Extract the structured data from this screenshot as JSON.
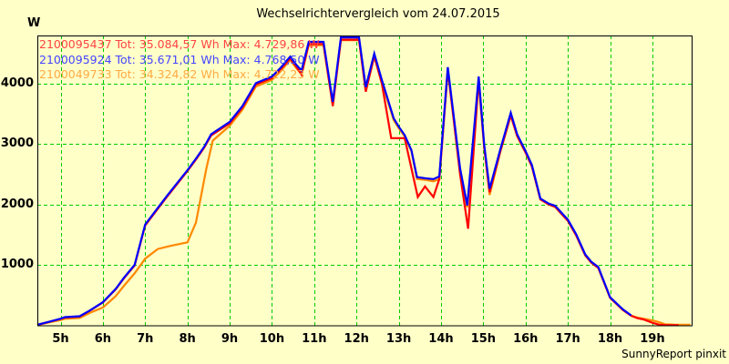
{
  "window": {
    "title": "Wechselrichtervergleich vom 24.07.2015",
    "y_unit_label": "W",
    "credit": "SunnyReport pinxit"
  },
  "colors": {
    "background": "#ffffc8",
    "frame": "#000000",
    "grid": "#00cc00",
    "series_red": "#ff0000",
    "series_blue": "#0000ff",
    "series_orange": "#ff8800",
    "legend_red": "#ff4444",
    "legend_blue": "#4444ff",
    "legend_orange": "#ffaa44"
  },
  "chart_data": {
    "type": "line",
    "title": "Wechselrichtervergleich vom 24.07.2015",
    "xlabel": "",
    "ylabel": "W",
    "x_unit": "hour of day",
    "y_unit": "W",
    "xlim": [
      4.45,
      19.95
    ],
    "ylim": [
      0,
      4800
    ],
    "grid": true,
    "grid_style": "dashed-green",
    "legend_position": "top-left-inside",
    "x_ticks": [
      {
        "t": 5,
        "label": "5h"
      },
      {
        "t": 6,
        "label": "6h"
      },
      {
        "t": 7,
        "label": "7h"
      },
      {
        "t": 8,
        "label": "8h"
      },
      {
        "t": 9,
        "label": "9h"
      },
      {
        "t": 10,
        "label": "10h"
      },
      {
        "t": 11,
        "label": "11h"
      },
      {
        "t": 12,
        "label": "12h"
      },
      {
        "t": 13,
        "label": "13h"
      },
      {
        "t": 14,
        "label": "14h"
      },
      {
        "t": 15,
        "label": "15h"
      },
      {
        "t": 16,
        "label": "16h"
      },
      {
        "t": 17,
        "label": "17h"
      },
      {
        "t": 18,
        "label": "18h"
      },
      {
        "t": 19,
        "label": "19h"
      }
    ],
    "y_ticks": [
      {
        "v": 1000,
        "label": "1000"
      },
      {
        "v": 2000,
        "label": "2000"
      },
      {
        "v": 3000,
        "label": "3000"
      },
      {
        "v": 4000,
        "label": "4000"
      }
    ],
    "series": [
      {
        "name": "2100095437",
        "legend": "2100095437 Tot: 35.084,57 Wh Max: 4.729,86 W",
        "total_wh": "35.084,57",
        "max_w": "4.729,86",
        "color": "#ff0000",
        "legend_color": "#ff4444",
        "z": 1,
        "points": [
          [
            4.45,
            8
          ],
          [
            4.7,
            52
          ],
          [
            5.0,
            105
          ],
          [
            5.1,
            130
          ],
          [
            5.45,
            145
          ],
          [
            5.7,
            245
          ],
          [
            6.0,
            378
          ],
          [
            6.3,
            592
          ],
          [
            6.5,
            780
          ],
          [
            6.75,
            988
          ],
          [
            7.0,
            1655
          ],
          [
            7.25,
            1885
          ],
          [
            7.5,
            2115
          ],
          [
            7.75,
            2335
          ],
          [
            8.0,
            2555
          ],
          [
            8.2,
            2745
          ],
          [
            8.4,
            2945
          ],
          [
            8.56,
            3145
          ],
          [
            9.0,
            3345
          ],
          [
            9.3,
            3605
          ],
          [
            9.62,
            3990
          ],
          [
            10.0,
            4095
          ],
          [
            10.2,
            4235
          ],
          [
            10.43,
            4420
          ],
          [
            10.58,
            4280
          ],
          [
            10.7,
            4150
          ],
          [
            10.87,
            4660
          ],
          [
            11.22,
            4660
          ],
          [
            11.44,
            3630
          ],
          [
            11.63,
            4730
          ],
          [
            12.06,
            4730
          ],
          [
            12.22,
            3870
          ],
          [
            12.42,
            4460
          ],
          [
            12.6,
            4000
          ],
          [
            12.82,
            3100
          ],
          [
            13.14,
            3100
          ],
          [
            13.45,
            2125
          ],
          [
            13.62,
            2300
          ],
          [
            13.82,
            2125
          ],
          [
            13.96,
            2420
          ],
          [
            14.16,
            4235
          ],
          [
            14.45,
            2500
          ],
          [
            14.64,
            1600
          ],
          [
            14.89,
            4065
          ],
          [
            15.02,
            2960
          ],
          [
            15.15,
            2205
          ],
          [
            15.4,
            2875
          ],
          [
            15.65,
            3475
          ],
          [
            15.8,
            3135
          ],
          [
            16.0,
            2860
          ],
          [
            16.15,
            2630
          ],
          [
            16.35,
            2085
          ],
          [
            16.55,
            2000
          ],
          [
            16.7,
            1960
          ],
          [
            17.0,
            1730
          ],
          [
            17.2,
            1485
          ],
          [
            17.41,
            1160
          ],
          [
            17.55,
            1040
          ],
          [
            17.72,
            950
          ],
          [
            18.0,
            455
          ],
          [
            18.15,
            355
          ],
          [
            18.3,
            255
          ],
          [
            18.5,
            158
          ],
          [
            18.65,
            118
          ],
          [
            18.8,
            95
          ],
          [
            19.0,
            42
          ],
          [
            19.15,
            12
          ],
          [
            19.3,
            2
          ],
          [
            19.62,
            2
          ]
        ]
      },
      {
        "name": "2100095924",
        "legend": "2100095924 Tot: 35.671,01 Wh Max: 4.768,50 W",
        "total_wh": "35.671,01",
        "max_w": "4.768,50",
        "color": "#0000ff",
        "legend_color": "#4444ff",
        "z": 2,
        "points": [
          [
            4.45,
            10
          ],
          [
            4.7,
            55
          ],
          [
            5.0,
            110
          ],
          [
            5.1,
            135
          ],
          [
            5.45,
            150
          ],
          [
            5.7,
            250
          ],
          [
            6.0,
            385
          ],
          [
            6.3,
            600
          ],
          [
            6.5,
            790
          ],
          [
            6.75,
            1000
          ],
          [
            7.0,
            1670
          ],
          [
            7.25,
            1900
          ],
          [
            7.5,
            2130
          ],
          [
            7.75,
            2350
          ],
          [
            8.0,
            2570
          ],
          [
            8.2,
            2760
          ],
          [
            8.4,
            2960
          ],
          [
            8.56,
            3165
          ],
          [
            9.0,
            3370
          ],
          [
            9.3,
            3630
          ],
          [
            9.62,
            4010
          ],
          [
            10.0,
            4120
          ],
          [
            10.2,
            4260
          ],
          [
            10.43,
            4450
          ],
          [
            10.58,
            4310
          ],
          [
            10.7,
            4220
          ],
          [
            10.87,
            4695
          ],
          [
            11.22,
            4695
          ],
          [
            11.44,
            3700
          ],
          [
            11.63,
            4768
          ],
          [
            12.06,
            4768
          ],
          [
            12.22,
            3945
          ],
          [
            12.42,
            4500
          ],
          [
            12.6,
            4060
          ],
          [
            12.88,
            3430
          ],
          [
            13.0,
            3290
          ],
          [
            13.14,
            3150
          ],
          [
            13.3,
            2900
          ],
          [
            13.43,
            2455
          ],
          [
            13.62,
            2435
          ],
          [
            13.82,
            2420
          ],
          [
            13.96,
            2465
          ],
          [
            14.16,
            4275
          ],
          [
            14.45,
            2600
          ],
          [
            14.62,
            1985
          ],
          [
            14.89,
            4120
          ],
          [
            15.02,
            3000
          ],
          [
            15.15,
            2260
          ],
          [
            15.4,
            2905
          ],
          [
            15.65,
            3520
          ],
          [
            15.8,
            3165
          ],
          [
            16.0,
            2885
          ],
          [
            16.15,
            2655
          ],
          [
            16.35,
            2100
          ],
          [
            16.55,
            2015
          ],
          [
            16.7,
            1980
          ],
          [
            17.0,
            1750
          ],
          [
            17.2,
            1505
          ],
          [
            17.41,
            1175
          ],
          [
            17.55,
            1055
          ],
          [
            17.72,
            965
          ],
          [
            18.0,
            465
          ],
          [
            18.15,
            365
          ],
          [
            18.3,
            265
          ],
          [
            18.5,
            165
          ]
        ]
      },
      {
        "name": "2100049733",
        "legend": "2100049733 Tot: 34.324,82 Wh Max: 4.722,23 W",
        "total_wh": "34.324,82",
        "max_w": "4.722,23",
        "color": "#ff8800",
        "legend_color": "#ffaa44",
        "z": 0,
        "points": [
          [
            4.45,
            5
          ],
          [
            4.7,
            45
          ],
          [
            5.0,
            88
          ],
          [
            5.1,
            108
          ],
          [
            5.45,
            122
          ],
          [
            5.7,
            210
          ],
          [
            6.0,
            295
          ],
          [
            6.3,
            480
          ],
          [
            6.5,
            655
          ],
          [
            6.75,
            860
          ],
          [
            7.0,
            1105
          ],
          [
            7.3,
            1265
          ],
          [
            7.6,
            1315
          ],
          [
            8.0,
            1375
          ],
          [
            8.2,
            1700
          ],
          [
            8.45,
            2600
          ],
          [
            8.6,
            3060
          ],
          [
            9.0,
            3305
          ],
          [
            9.3,
            3570
          ],
          [
            9.62,
            3955
          ],
          [
            10.0,
            4065
          ],
          [
            10.2,
            4205
          ],
          [
            10.43,
            4395
          ],
          [
            10.58,
            4255
          ],
          [
            10.7,
            4165
          ],
          [
            10.87,
            4640
          ],
          [
            11.22,
            4640
          ],
          [
            11.44,
            3665
          ],
          [
            11.63,
            4722
          ],
          [
            12.06,
            4722
          ],
          [
            12.22,
            3905
          ],
          [
            12.42,
            4455
          ],
          [
            12.6,
            4020
          ],
          [
            12.88,
            3400
          ],
          [
            13.0,
            3265
          ],
          [
            13.14,
            3125
          ],
          [
            13.3,
            2885
          ],
          [
            13.43,
            2425
          ],
          [
            13.62,
            2410
          ],
          [
            13.82,
            2385
          ],
          [
            13.96,
            2420
          ],
          [
            14.16,
            4225
          ],
          [
            14.45,
            2570
          ],
          [
            14.62,
            1955
          ],
          [
            14.89,
            4035
          ],
          [
            15.02,
            2950
          ],
          [
            15.15,
            2160
          ],
          [
            15.4,
            2865
          ],
          [
            15.65,
            3485
          ],
          [
            15.8,
            3145
          ],
          [
            16.0,
            2865
          ],
          [
            16.15,
            2635
          ],
          [
            16.35,
            2090
          ],
          [
            16.55,
            2005
          ],
          [
            16.7,
            1968
          ],
          [
            17.0,
            1738
          ],
          [
            17.2,
            1490
          ],
          [
            17.41,
            1165
          ],
          [
            17.55,
            1045
          ],
          [
            17.72,
            952
          ],
          [
            18.0,
            458
          ],
          [
            18.15,
            358
          ],
          [
            18.3,
            258
          ],
          [
            18.5,
            162
          ],
          [
            18.65,
            128
          ],
          [
            18.8,
            108
          ],
          [
            19.0,
            82
          ],
          [
            19.15,
            55
          ],
          [
            19.3,
            18
          ],
          [
            19.5,
            12
          ],
          [
            19.9,
            10
          ]
        ]
      }
    ]
  }
}
